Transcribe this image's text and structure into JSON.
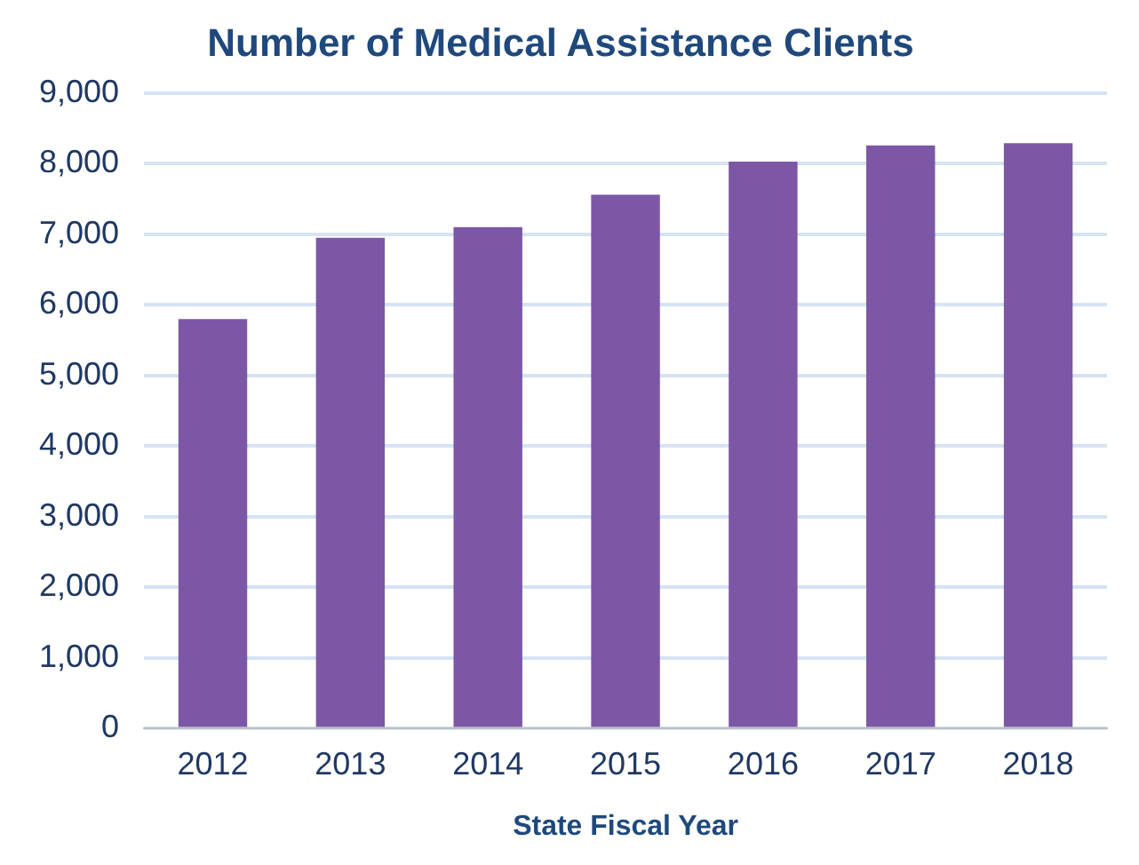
{
  "chart_data": {
    "type": "bar",
    "title": "Number of Medical Assistance Clients",
    "xlabel": "State Fiscal Year",
    "categories": [
      "2012",
      "2013",
      "2014",
      "2015",
      "2016",
      "2017",
      "2018"
    ],
    "values": [
      5800,
      6950,
      7100,
      7560,
      8030,
      8260,
      8290
    ],
    "color": "#7b57a6",
    "ylim": [
      0,
      9000
    ],
    "yticks": [
      0,
      {
        "value": 1000,
        "label": "1,000"
      },
      {
        "value": 2000,
        "label": "2,000"
      },
      {
        "value": 3000,
        "label": "3,000"
      },
      {
        "value": 4000,
        "label": "4,000"
      },
      {
        "value": 5000,
        "label": "5,000"
      },
      {
        "value": 6000,
        "label": "6,000"
      },
      {
        "value": 7000,
        "label": "7,000"
      },
      {
        "value": 8000,
        "label": "8,000"
      },
      {
        "value": 9000,
        "label": "9,000"
      }
    ],
    "grid": "y",
    "legend": false
  }
}
